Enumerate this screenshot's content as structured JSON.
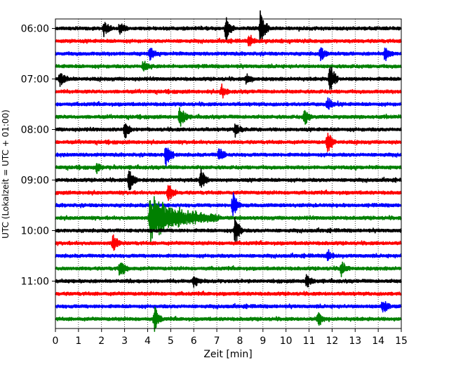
{
  "chart_data": {
    "type": "line",
    "subtype": "helicorder",
    "xlabel": "Zeit  [min]",
    "ylabel": "UTC (Lokalzeit = UTC + 01:00)",
    "xlim": [
      0,
      15
    ],
    "x_ticks": [
      "0",
      "1",
      "2",
      "3",
      "4",
      "5",
      "6",
      "7",
      "8",
      "9",
      "10",
      "11",
      "12",
      "13",
      "14",
      "15"
    ],
    "y_ticks": [
      "06:00",
      "07:00",
      "08:00",
      "09:00",
      "10:00",
      "11:00"
    ],
    "grid": "vertical dotted at each minute",
    "trace_interval_min": 15,
    "start_time": "06:00",
    "colors": [
      "#000000",
      "#ff0000",
      "#0000ff",
      "#008000"
    ],
    "traces": [
      {
        "start": "06:00",
        "color": "#000000",
        "events": [
          {
            "t": 2.1,
            "amp": 0.4
          },
          {
            "t": 2.8,
            "amp": 0.35
          },
          {
            "t": 7.4,
            "amp": 0.55
          },
          {
            "t": 8.9,
            "amp": 0.9
          }
        ]
      },
      {
        "start": "06:15",
        "color": "#ff0000",
        "events": [
          {
            "t": 8.4,
            "amp": 0.3
          }
        ]
      },
      {
        "start": "06:30",
        "color": "#0000ff",
        "events": [
          {
            "t": 4.1,
            "amp": 0.35
          },
          {
            "t": 11.5,
            "amp": 0.4
          },
          {
            "t": 14.3,
            "amp": 0.4
          }
        ]
      },
      {
        "start": "06:45",
        "color": "#008000",
        "events": [
          {
            "t": 3.8,
            "amp": 0.25
          }
        ]
      },
      {
        "start": "07:00",
        "color": "#000000",
        "events": [
          {
            "t": 0.2,
            "amp": 0.35
          },
          {
            "t": 8.3,
            "amp": 0.3
          },
          {
            "t": 11.9,
            "amp": 0.9
          }
        ]
      },
      {
        "start": "07:15",
        "color": "#ff0000",
        "events": [
          {
            "t": 7.2,
            "amp": 0.3
          }
        ]
      },
      {
        "start": "07:30",
        "color": "#0000ff",
        "events": [
          {
            "t": 11.8,
            "amp": 0.3
          }
        ]
      },
      {
        "start": "07:45",
        "color": "#008000",
        "events": [
          {
            "t": 5.4,
            "amp": 0.6
          },
          {
            "t": 10.8,
            "amp": 0.35
          }
        ]
      },
      {
        "start": "08:00",
        "color": "#000000",
        "events": [
          {
            "t": 3.0,
            "amp": 0.45
          },
          {
            "t": 7.8,
            "amp": 0.3
          }
        ]
      },
      {
        "start": "08:15",
        "color": "#ff0000",
        "events": [
          {
            "t": 11.8,
            "amp": 0.6
          }
        ]
      },
      {
        "start": "08:30",
        "color": "#0000ff",
        "events": [
          {
            "t": 4.8,
            "amp": 0.7
          },
          {
            "t": 7.1,
            "amp": 0.35
          }
        ]
      },
      {
        "start": "08:45",
        "color": "#008000",
        "events": [
          {
            "t": 1.8,
            "amp": 0.2
          }
        ]
      },
      {
        "start": "09:00",
        "color": "#000000",
        "events": [
          {
            "t": 3.2,
            "amp": 0.6
          },
          {
            "t": 6.3,
            "amp": 0.7
          }
        ]
      },
      {
        "start": "09:15",
        "color": "#ff0000",
        "events": [
          {
            "t": 4.9,
            "amp": 0.5
          }
        ]
      },
      {
        "start": "09:30",
        "color": "#0000ff",
        "events": [
          {
            "t": 7.7,
            "amp": 0.6
          }
        ]
      },
      {
        "start": "09:45",
        "color": "#008000",
        "events": [
          {
            "t": 4.1,
            "amp": 1.0,
            "duration": 3.0
          }
        ]
      },
      {
        "start": "10:00",
        "color": "#000000",
        "events": [
          {
            "t": 7.8,
            "amp": 0.75
          }
        ]
      },
      {
        "start": "10:15",
        "color": "#ff0000",
        "events": [
          {
            "t": 2.5,
            "amp": 0.4
          }
        ]
      },
      {
        "start": "10:30",
        "color": "#0000ff",
        "events": [
          {
            "t": 11.8,
            "amp": 0.3
          }
        ]
      },
      {
        "start": "10:45",
        "color": "#008000",
        "events": [
          {
            "t": 2.8,
            "amp": 0.45
          },
          {
            "t": 12.4,
            "amp": 0.4
          }
        ]
      },
      {
        "start": "11:00",
        "color": "#000000",
        "events": [
          {
            "t": 6.0,
            "amp": 0.3
          },
          {
            "t": 10.9,
            "amp": 0.3
          }
        ]
      },
      {
        "start": "11:15",
        "color": "#ff0000",
        "events": []
      },
      {
        "start": "11:30",
        "color": "#0000ff",
        "events": [
          {
            "t": 14.2,
            "amp": 0.35
          }
        ]
      },
      {
        "start": "11:45",
        "color": "#008000",
        "events": [
          {
            "t": 4.3,
            "amp": 0.6
          },
          {
            "t": 11.4,
            "amp": 0.35
          }
        ]
      }
    ]
  }
}
